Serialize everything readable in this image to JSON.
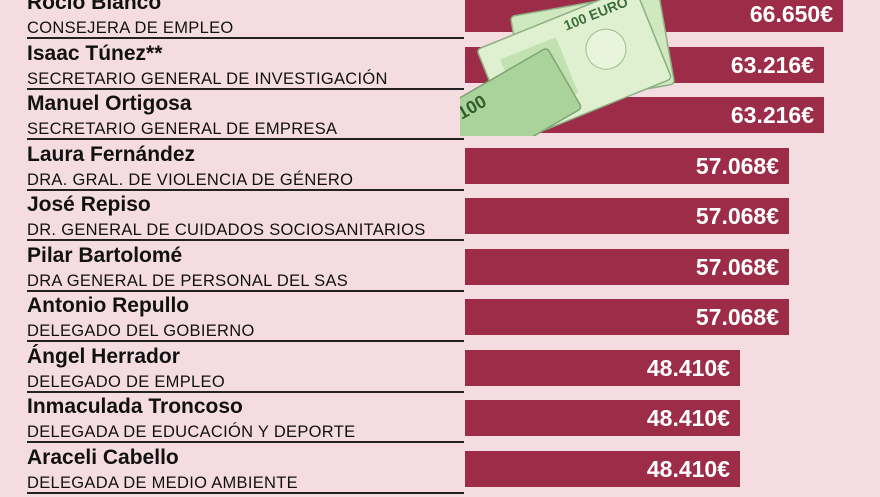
{
  "chart_data": {
    "type": "bar",
    "orientation": "horizontal",
    "categories": [
      "Rocío Blanco",
      "Isaac Túnez**",
      "Manuel Ortigosa",
      "Laura Fernández",
      "José Repiso",
      "Pilar Bartolomé",
      "Antonio Repullo",
      "Ángel Herrador",
      "Inmaculada Troncoso",
      "Araceli Cabello"
    ],
    "subtitles": [
      "CONSEJERA DE EMPLEO",
      "SECRETARIO GENERAL DE INVESTIGACIÓN",
      "SECRETARIO GENERAL DE EMPRESA",
      "DRA. GRAL. DE VIOLENCIA DE GÉNERO",
      "DR. GENERAL DE CUIDADOS SOCIOSANITARIOS",
      "DRA GENERAL DE PERSONAL DEL SAS",
      "DELEGADO DEL GOBIERNO",
      "DELEGADO DE EMPLEO",
      "DELEGADA DE EDUCACIÓN Y DEPORTE",
      "DELEGADA DE MEDIO AMBIENTE"
    ],
    "values": [
      66650,
      63216,
      63216,
      57068,
      57068,
      57068,
      57068,
      48410,
      48410,
      48410
    ],
    "value_labels": [
      "66.650€",
      "63.216€",
      "63.216€",
      "57.068€",
      "57.068€",
      "57.068€",
      "57.068€",
      "48.410€",
      "48.410€",
      "48.410€"
    ],
    "bar_color": "#9c2c48",
    "background_color": "#f5dce1",
    "grid": false
  },
  "illustration": {
    "icon": "euro-banknotes-icon",
    "banknote_text": "100 EURO",
    "banknote_color": "#b9dfa8"
  }
}
